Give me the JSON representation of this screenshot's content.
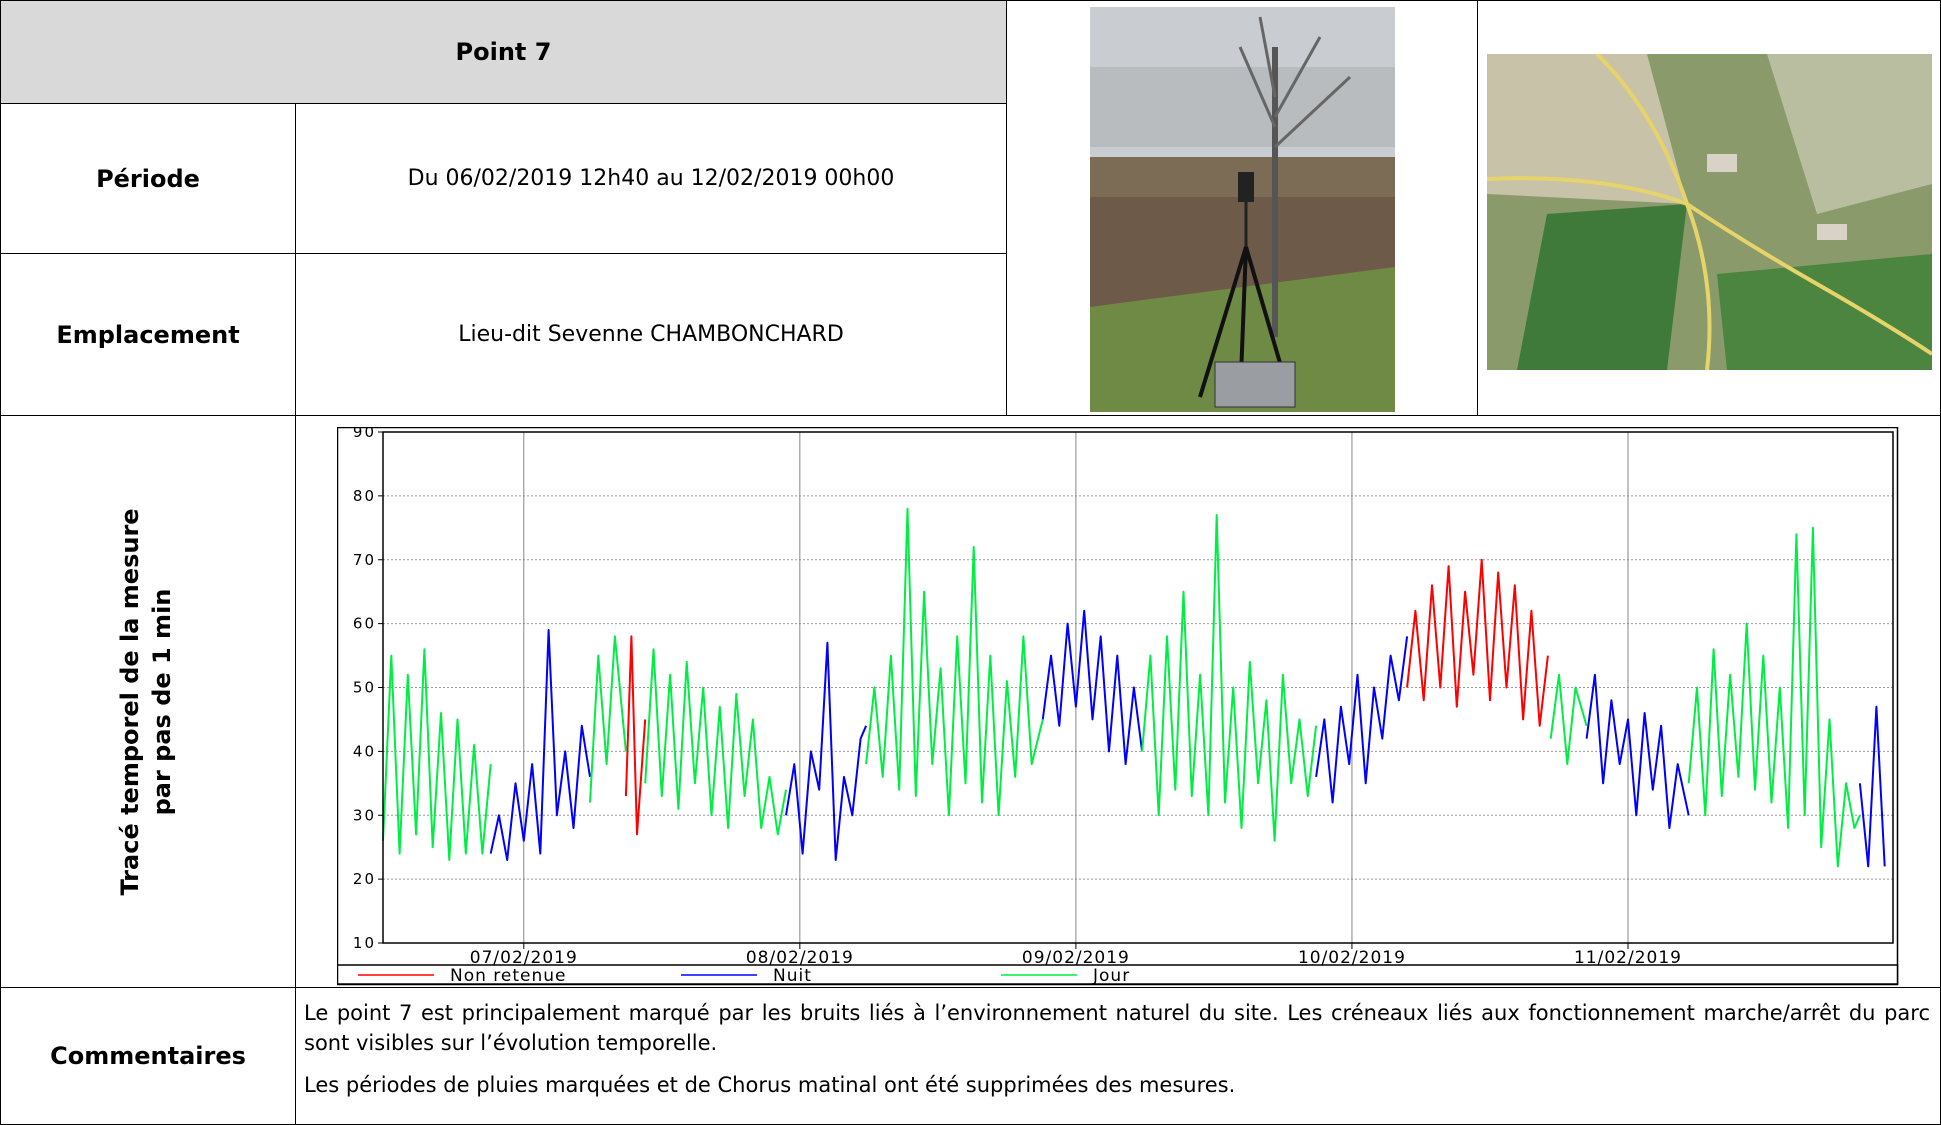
{
  "header": {
    "title": "Point 7"
  },
  "rows": [
    {
      "label": "Période",
      "value": "Du 06/02/2019 12h40 au 12/02/2019 00h00"
    },
    {
      "label": "Emplacement",
      "value": "Lieu-dit Sevenne CHAMBONCHARD"
    }
  ],
  "chart_label": [
    "Tracé temporel de la mesure",
    "par pas de 1 min"
  ],
  "chart_data": {
    "type": "line",
    "xlim": [
      0.49,
      5.96
    ],
    "xticks": [
      {
        "value": 1,
        "label": "07/02/2019"
      },
      {
        "value": 2,
        "label": "08/02/2019"
      },
      {
        "value": 3,
        "label": "09/02/2019"
      },
      {
        "value": 4,
        "label": "10/02/2019"
      },
      {
        "value": 5,
        "label": "11/02/2019"
      }
    ],
    "ylim": [
      10,
      90
    ],
    "yticks": [
      10,
      20,
      30,
      40,
      50,
      60,
      70,
      80,
      90
    ],
    "grid": true,
    "series": [
      {
        "name": "Non retenue",
        "color": "#ff0000",
        "x": [
          1.37,
          1.39,
          1.41,
          1.44,
          3.0,
          4.2,
          4.23,
          4.26,
          4.29,
          4.32,
          4.35,
          4.38,
          4.41,
          4.44,
          4.47,
          4.5,
          4.53,
          4.56,
          4.59,
          4.62,
          4.65,
          4.68,
          4.71
        ],
        "values": [
          33,
          58,
          27,
          45,
          null,
          50,
          62,
          48,
          66,
          50,
          69,
          47,
          65,
          52,
          70,
          48,
          68,
          50,
          66,
          45,
          62,
          44,
          55
        ]
      },
      {
        "name": "Nuit",
        "color": "#0000ff",
        "x": [
          0.88,
          0.91,
          0.94,
          0.97,
          1.0,
          1.03,
          1.06,
          1.09,
          1.12,
          1.15,
          1.18,
          1.21,
          1.24,
          1.6,
          1.95,
          1.98,
          2.01,
          2.04,
          2.07,
          2.1,
          2.13,
          2.16,
          2.19,
          2.22,
          2.24,
          2.5,
          2.88,
          2.91,
          2.94,
          2.97,
          3.0,
          3.03,
          3.06,
          3.09,
          3.12,
          3.15,
          3.18,
          3.21,
          3.24,
          3.5,
          3.87,
          3.9,
          3.93,
          3.96,
          3.99,
          4.02,
          4.05,
          4.08,
          4.11,
          4.14,
          4.17,
          4.2,
          4.5,
          4.85,
          4.88,
          4.91,
          4.94,
          4.97,
          5.0,
          5.03,
          5.06,
          5.09,
          5.12,
          5.15,
          5.18,
          5.22,
          5.5,
          5.84,
          5.87,
          5.9,
          5.93
        ],
        "values": [
          24,
          30,
          23,
          35,
          26,
          38,
          24,
          59,
          30,
          40,
          28,
          44,
          36,
          null,
          30,
          38,
          24,
          40,
          34,
          57,
          23,
          36,
          30,
          42,
          44,
          null,
          45,
          55,
          44,
          60,
          47,
          62,
          45,
          58,
          40,
          55,
          38,
          50,
          40,
          null,
          36,
          45,
          32,
          47,
          38,
          52,
          35,
          50,
          42,
          55,
          48,
          58,
          null,
          42,
          52,
          35,
          48,
          38,
          45,
          30,
          46,
          34,
          44,
          28,
          38,
          30,
          null,
          35,
          22,
          47,
          22
        ]
      },
      {
        "name": "Jour",
        "color": "#00ee44",
        "x": [
          0.49,
          0.52,
          0.55,
          0.58,
          0.61,
          0.64,
          0.67,
          0.7,
          0.73,
          0.76,
          0.79,
          0.82,
          0.85,
          0.88,
          1.0,
          1.24,
          1.27,
          1.3,
          1.33,
          1.37,
          1.4,
          1.44,
          1.47,
          1.5,
          1.53,
          1.56,
          1.59,
          1.62,
          1.65,
          1.68,
          1.71,
          1.74,
          1.77,
          1.8,
          1.83,
          1.86,
          1.89,
          1.92,
          1.95,
          2.1,
          2.24,
          2.27,
          2.3,
          2.33,
          2.36,
          2.39,
          2.42,
          2.45,
          2.48,
          2.51,
          2.54,
          2.57,
          2.6,
          2.63,
          2.66,
          2.69,
          2.72,
          2.75,
          2.78,
          2.81,
          2.84,
          2.88,
          3.0,
          3.24,
          3.27,
          3.3,
          3.33,
          3.36,
          3.39,
          3.42,
          3.45,
          3.48,
          3.51,
          3.54,
          3.57,
          3.6,
          3.63,
          3.66,
          3.69,
          3.72,
          3.75,
          3.78,
          3.81,
          3.84,
          3.87,
          4.0,
          4.72,
          4.75,
          4.78,
          4.81,
          4.85,
          5.0,
          5.22,
          5.25,
          5.28,
          5.31,
          5.34,
          5.37,
          5.4,
          5.43,
          5.46,
          5.49,
          5.52,
          5.55,
          5.58,
          5.61,
          5.64,
          5.67,
          5.7,
          5.73,
          5.76,
          5.79,
          5.82,
          5.84
        ],
        "values": [
          26,
          55,
          24,
          52,
          27,
          56,
          25,
          46,
          23,
          45,
          24,
          41,
          24,
          38,
          null,
          32,
          55,
          38,
          58,
          40,
          null,
          35,
          56,
          33,
          52,
          31,
          54,
          35,
          50,
          30,
          47,
          28,
          49,
          33,
          45,
          28,
          36,
          27,
          34,
          null,
          38,
          50,
          36,
          55,
          34,
          78,
          33,
          65,
          38,
          53,
          30,
          58,
          35,
          72,
          32,
          55,
          30,
          51,
          36,
          58,
          38,
          45,
          null,
          40,
          55,
          30,
          58,
          34,
          65,
          33,
          52,
          30,
          77,
          32,
          50,
          28,
          54,
          35,
          48,
          26,
          52,
          35,
          45,
          33,
          44,
          null,
          42,
          52,
          38,
          50,
          44,
          null,
          35,
          50,
          30,
          56,
          33,
          52,
          36,
          60,
          34,
          55,
          32,
          50,
          28,
          74,
          30,
          75,
          25,
          45,
          22,
          35,
          28,
          30
        ]
      }
    ]
  },
  "comments": {
    "label": "Commentaires",
    "paragraphs": [
      "Le point 7 est principalement marqué par les bruits liés à l’environnement naturel du site. Les créneaux liés aux fonctionnement marche/arrêt du parc sont visibles sur l’évolution temporelle.",
      "Les périodes de pluies marquées et de Chorus matinal ont été supprimées des mesures."
    ]
  }
}
